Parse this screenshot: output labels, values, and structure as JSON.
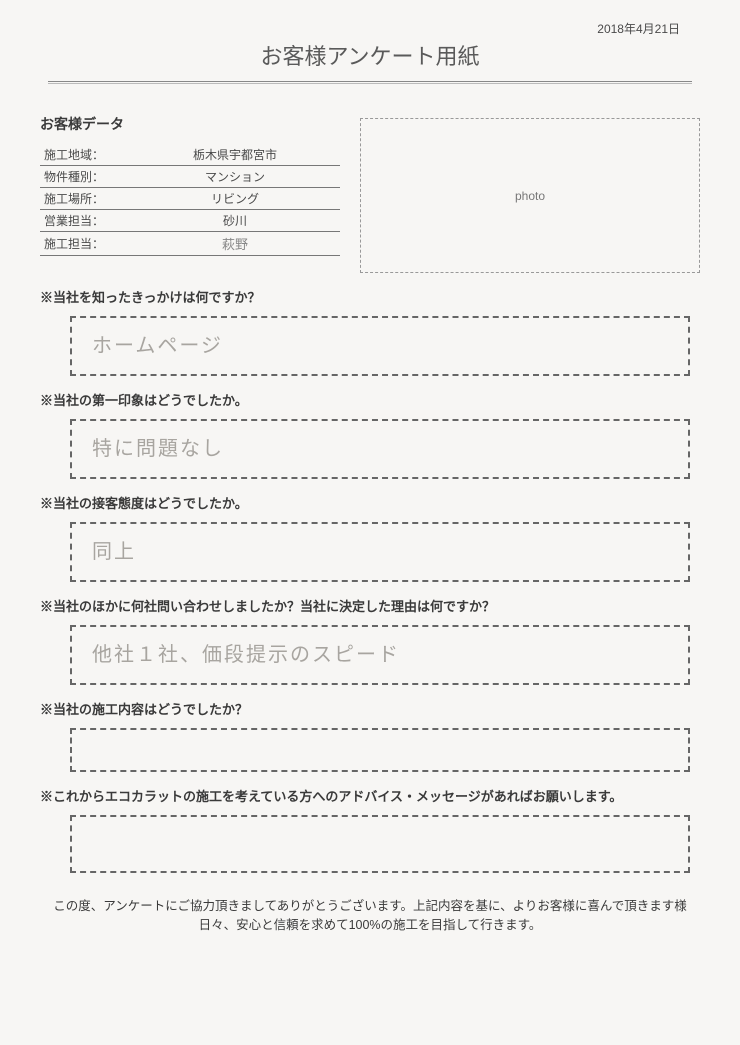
{
  "date": "2018年4月21日",
  "title": "お客様アンケート用紙",
  "customer_heading": "お客様データ",
  "fields": [
    {
      "label": "施工地域：",
      "value": "栃木県宇都宮市",
      "handwritten": false
    },
    {
      "label": "物件種別：",
      "value": "マンション",
      "handwritten": false
    },
    {
      "label": "施工場所：",
      "value": "リビング",
      "handwritten": false
    },
    {
      "label": "営業担当：",
      "value": "砂川",
      "handwritten": false
    },
    {
      "label": "施工担当：",
      "value": "萩野",
      "handwritten": true
    }
  ],
  "photo_label": "photo",
  "questions": [
    {
      "q": "※当社を知ったきっかけは何ですか？",
      "a": "ホームページ"
    },
    {
      "q": "※当社の第一印象はどうでしたか。",
      "a": "特に問題なし"
    },
    {
      "q": "※当社の接客態度はどうでしたか。",
      "a": "同上"
    },
    {
      "q": "※当社のほかに何社問い合わせしましたか？当社に決定した理由は何ですか？",
      "a": "他社１社、価段提示のスピード"
    },
    {
      "q": "※当社の施工内容はどうでしたか？",
      "a": ""
    },
    {
      "q": "※これからエコカラットの施工を考えている方へのアドバイス・メッセージがあればお願いします。",
      "a": ""
    }
  ],
  "footer": "この度、アンケートにご協力頂きましてありがとうございます。上記内容を基に、よりお客様に喜んで頂きます様日々、安心と信頼を求めて100%の施工を目指して行きます。",
  "colors": {
    "background": "#f7f6f4",
    "text": "#4a4a4a",
    "border": "#666",
    "handwriting": "#a8a5a0"
  }
}
